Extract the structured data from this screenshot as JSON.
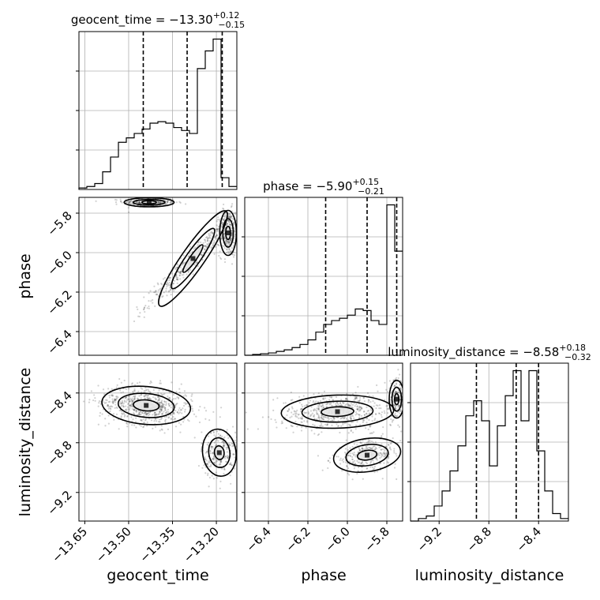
{
  "chart_data": {
    "type": "corner",
    "parameters": [
      "geocent_time",
      "phase",
      "luminosity_distance"
    ],
    "axis_labels": {
      "geocent_time": "geocent_time",
      "phase": "phase",
      "luminosity_distance": "luminosity_distance"
    },
    "titles": [
      {
        "param": "geocent_time",
        "prefix": "geocent_time = ",
        "median": "−13.30",
        "plus": "+0.12",
        "minus": "−0.15"
      },
      {
        "param": "phase",
        "prefix": "phase = ",
        "median": "−5.90",
        "plus": "+0.15",
        "minus": "−0.21"
      },
      {
        "param": "luminosity_distance",
        "prefix": "luminosity_distance = ",
        "median": "−8.58",
        "plus": "+0.18",
        "minus": "−0.32"
      }
    ],
    "ranges": {
      "geocent_time": [
        -13.67,
        -13.13
      ],
      "phase": [
        -6.52,
        -5.72
      ],
      "luminosity_distance": [
        -9.43,
        -8.16
      ]
    },
    "ticks": {
      "geocent_time": [
        -13.65,
        -13.5,
        -13.35,
        -13.2
      ],
      "phase": [
        -6.4,
        -6.2,
        -6.0,
        -5.8
      ],
      "luminosity_distance": [
        -9.2,
        -8.8,
        -8.4
      ]
    },
    "tick_labels": {
      "geocent_time": [
        "−13.65",
        "−13.50",
        "−13.35",
        "−13.20"
      ],
      "phase": [
        "−6.4",
        "−6.2",
        "−6.0",
        "−5.8"
      ],
      "luminosity_distance": [
        "−9.2",
        "−8.8",
        "−8.4"
      ]
    },
    "quantiles": {
      "geocent_time": [
        -13.45,
        -13.3,
        -13.18
      ],
      "phase": [
        -6.11,
        -5.9,
        -5.75
      ],
      "luminosity_distance": [
        -8.9,
        -8.58,
        -8.4
      ]
    },
    "histograms": {
      "geocent_time": {
        "edges": [
          -13.67,
          -13.643,
          -13.616,
          -13.589,
          -13.562,
          -13.535,
          -13.508,
          -13.481,
          -13.454,
          -13.427,
          -13.4,
          -13.373,
          -13.346,
          -13.319,
          -13.292,
          -13.265,
          -13.238,
          -13.211,
          -13.184,
          -13.157,
          -13.13
        ],
        "counts": [
          1,
          2,
          4,
          12,
          22,
          32,
          35,
          38,
          41,
          45,
          46,
          45,
          42,
          40,
          38,
          82,
          94,
          102,
          8,
          2
        ]
      },
      "phase": {
        "edges": [
          -6.52,
          -6.48,
          -6.44,
          -6.4,
          -6.36,
          -6.32,
          -6.28,
          -6.24,
          -6.2,
          -6.16,
          -6.12,
          -6.08,
          -6.04,
          -6.0,
          -5.96,
          -5.92,
          -5.88,
          -5.84,
          -5.8,
          -5.76,
          -5.72
        ],
        "counts": [
          0,
          1,
          2,
          3,
          5,
          7,
          10,
          14,
          20,
          30,
          40,
          45,
          48,
          52,
          60,
          58,
          45,
          40,
          195,
          135
        ]
      },
      "luminosity_distance": {
        "edges": [
          -9.43,
          -9.3665,
          -9.303,
          -9.2395,
          -9.176,
          -9.1125,
          -9.049,
          -8.9855,
          -8.922,
          -8.8585,
          -8.795,
          -8.7315,
          -8.668,
          -8.6045,
          -8.541,
          -8.4775,
          -8.414,
          -8.3505,
          -8.287,
          -8.2235,
          -8.16
        ],
        "counts": [
          0,
          1,
          2,
          6,
          12,
          20,
          30,
          42,
          48,
          40,
          22,
          38,
          50,
          60,
          40,
          60,
          28,
          12,
          3,
          1
        ]
      }
    },
    "pair_modes": {
      "phase_vs_geocent_time": [
        {
          "x": -13.43,
          "y": -5.745,
          "sx": 0.045,
          "sy": 0.012,
          "rho": 0.0,
          "n": 300
        },
        {
          "x": -13.28,
          "y": -6.03,
          "sx": 0.08,
          "sy": 0.12,
          "rho": 0.97,
          "n": 420
        },
        {
          "x": -13.16,
          "y": -5.9,
          "sx": 0.015,
          "sy": 0.06,
          "rho": 0.0,
          "n": 320
        }
      ],
      "luminosity_distance_vs_geocent_time": [
        {
          "x": -13.44,
          "y": -8.5,
          "sx": 0.08,
          "sy": 0.08,
          "rho": -0.2,
          "n": 700
        },
        {
          "x": -13.19,
          "y": -8.88,
          "sx": 0.03,
          "sy": 0.1,
          "rho": 0.1,
          "n": 260
        }
      ],
      "luminosity_distance_vs_phase": [
        {
          "x": -6.05,
          "y": -8.55,
          "sx": 0.15,
          "sy": 0.07,
          "rho": 0.1,
          "n": 600
        },
        {
          "x": -5.9,
          "y": -8.9,
          "sx": 0.09,
          "sy": 0.07,
          "rho": 0.3,
          "n": 320
        },
        {
          "x": -5.75,
          "y": -8.45,
          "sx": 0.02,
          "sy": 0.08,
          "rho": 0.0,
          "n": 160
        }
      ]
    },
    "grid": true,
    "legend": "none"
  }
}
